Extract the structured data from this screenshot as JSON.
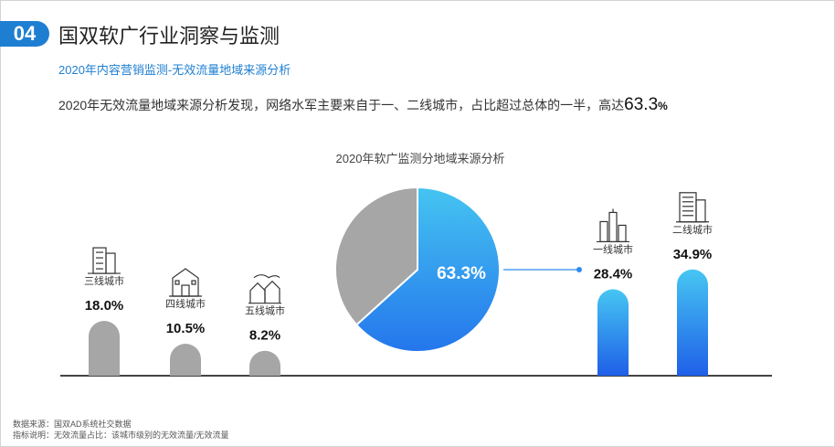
{
  "header": {
    "badge": "04",
    "title": "国双软广行业洞察与监测",
    "subtitle": "2020年内容营销监测-无效流量地域来源分析",
    "summary_prefix": "2020年无效流量地域来源分析发现，网络水军主要来自于一、二线城市，占比超过总体的一半，高达",
    "summary_value": "63.3",
    "summary_unit": "%"
  },
  "chart_data": {
    "type": "bar",
    "title": "2020年软广监测分地域来源分析",
    "categories": [
      "三线城市",
      "四线城市",
      "五线城市",
      "一线城市",
      "二线城市"
    ],
    "values": [
      18.0,
      10.5,
      8.2,
      28.4,
      34.9
    ],
    "labels": [
      "18.0%",
      "10.5%",
      "8.2%",
      "28.4%",
      "34.9%"
    ],
    "unit": "%",
    "colors": {
      "low_tier": "#a6a6a6",
      "high_tier_top": "#46c6f2",
      "high_tier_bottom": "#1f5fe8",
      "axis": "#444444"
    },
    "icons": [
      "apartment-building-icon",
      "house-icon",
      "village-icon",
      "city-skyline-icon",
      "office-building-icon"
    ],
    "pie": {
      "slices": [
        {
          "value": 63.3,
          "label": "63.3%",
          "color": "#2f8bf0"
        },
        {
          "value": 36.7,
          "label": "",
          "color": "#a6a6a6"
        }
      ]
    }
  },
  "footer": {
    "source": "数据来源：国双AD系统社交数据",
    "note": "指标说明：无效流量占比：该城市级别的无效流量/无效流量"
  }
}
